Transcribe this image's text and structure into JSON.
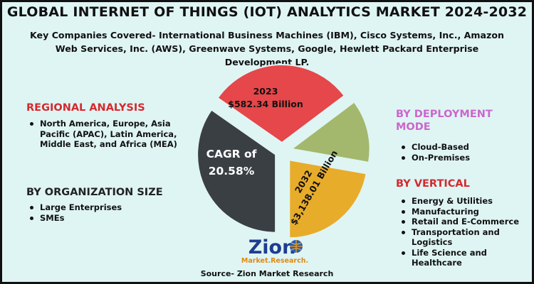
{
  "title": "GLOBAL INTERNET OF THINGS (IOT) ANALYTICS MARKET 2024-2032",
  "subtitle": "Key Companies Covered- International Business Machines (IBM), Cisco Systems, Inc., Amazon Web Services, Inc. (AWS), Greenwave Systems, Google, Hewlett Packard Enterprise Development LP.",
  "regional": {
    "heading": "REGIONAL ANALYSIS",
    "items": [
      "North America, Europe, Asia Pacific (APAC), Latin America, Middle East, and Africa (MEA)"
    ]
  },
  "organization": {
    "heading": "BY ORGANIZATION SIZE",
    "items": [
      "Large Enterprises",
      "SMEs"
    ]
  },
  "deployment": {
    "heading": "BY DEPLOYMENT MODE",
    "items": [
      "Cloud-Based",
      "On-Premises"
    ]
  },
  "vertical": {
    "heading": "BY VERTICAL",
    "items": [
      "Energy & Utilities",
      "Manufacturing",
      "Retail and E-Commerce",
      "Transportation and Logistics",
      "Life Science and Healthcare"
    ]
  },
  "source": "Source- Zion Market Research",
  "logo": {
    "brand": "Zion",
    "sub": "Market.Research."
  },
  "colors": {
    "red_heading": "#d42a2e",
    "pink_heading": "#cc66cc",
    "background": "#dff5f4"
  },
  "chart_data": {
    "type": "pie",
    "segments": [
      {
        "label_line1": "2023",
        "label_line2": "$582.34 Billion",
        "color": "#e5474a"
      },
      {
        "label_line1": "",
        "label_line2": "",
        "color": "#a3b86c"
      },
      {
        "label_line1": "2032",
        "label_line2": "$3,138.01 Billion",
        "color": "#e8ac2b"
      },
      {
        "label_line1": "CAGR of",
        "label_line2": "20.58%",
        "color": "#3a3f44"
      }
    ]
  }
}
